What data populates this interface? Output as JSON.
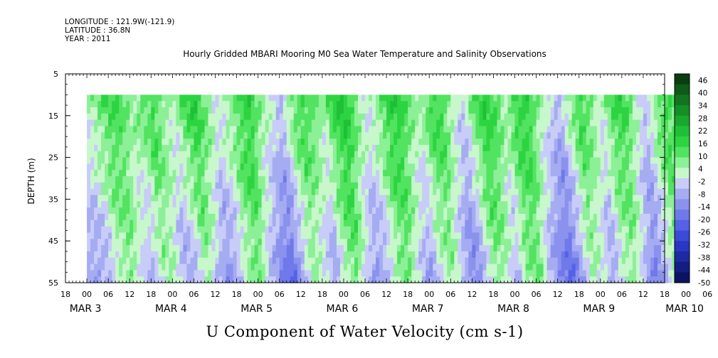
{
  "header": {
    "longitude": "LONGITUDE : 121.9W(-121.9)",
    "latitude": "LATITUDE : 36.8N",
    "year": "YEAR : 2011"
  },
  "chart_data": {
    "type": "heatmap",
    "title": "Hourly Gridded MBARI Mooring M0 Sea Water Temperature and Salinity Observations",
    "xlabel": "U Component of Water Velocity (cm s-1)",
    "ylabel": "DEPTH (m)",
    "ylim": [
      5,
      55
    ],
    "y_inverted": true,
    "yticks": [
      5,
      15,
      25,
      35,
      45,
      55
    ],
    "x_range_hours": [
      0,
      168
    ],
    "x_start_label": "MAR 2 18h",
    "xticks_hours": [
      "18",
      "00",
      "06",
      "12",
      "18",
      "00",
      "06",
      "12",
      "18",
      "00",
      "06",
      "12",
      "18",
      "00",
      "06",
      "12",
      "18",
      "00",
      "06",
      "12",
      "18",
      "00",
      "06",
      "12",
      "18",
      "00",
      "06",
      "12",
      "18",
      "00",
      "06",
      "12",
      "18",
      "00",
      "06",
      "12",
      "18"
    ],
    "day_labels": [
      {
        "text": "MAR  3",
        "hour": 6
      },
      {
        "text": "MAR  4",
        "hour": 30
      },
      {
        "text": "MAR  5",
        "hour": 54
      },
      {
        "text": "MAR  6",
        "hour": 78
      },
      {
        "text": "MAR  7",
        "hour": 102
      },
      {
        "text": "MAR  8",
        "hour": 126
      },
      {
        "text": "MAR  9",
        "hour": 150
      },
      {
        "text": "MAR 10",
        "hour": 174
      }
    ],
    "data_depth_range": [
      10,
      55
    ],
    "data_hour_range": [
      6,
      174
    ],
    "colorbar": {
      "levels": [
        46,
        40,
        34,
        28,
        22,
        16,
        10,
        4,
        -2,
        -8,
        -14,
        -20,
        -26,
        -32,
        -38,
        -44,
        -50
      ],
      "colors_top_to_bottom": [
        "#0b3d12",
        "#0e5a18",
        "#11751f",
        "#138f26",
        "#18a82e",
        "#1fc037",
        "#2dd442",
        "#52e360",
        "#8cf096",
        "#c8f7cc",
        "#c8ccf8",
        "#a5acf2",
        "#8a92ee",
        "#7079ea",
        "#5561e6",
        "#3c4ad8",
        "#2a37c4",
        "#1e2aa3",
        "#141d82",
        "#0c1363"
      ]
    },
    "field": {
      "x_hours": [
        6,
        9,
        12,
        15,
        18,
        21,
        24,
        27,
        30,
        33,
        36,
        39,
        42,
        45,
        48,
        51,
        54,
        57,
        60,
        63,
        66,
        69,
        72,
        75,
        78,
        81,
        84,
        87,
        90,
        93,
        96,
        99,
        102,
        105,
        108,
        111,
        114,
        117,
        120,
        123,
        126,
        129,
        132,
        135,
        138,
        141,
        144,
        147,
        150,
        153,
        156,
        159,
        162,
        165,
        168,
        171,
        174
      ],
      "surface_u": [
        4,
        10,
        14,
        12,
        6,
        10,
        16,
        8,
        4,
        14,
        18,
        10,
        2,
        6,
        14,
        18,
        8,
        2,
        -4,
        10,
        16,
        12,
        6,
        16,
        20,
        10,
        2,
        8,
        16,
        18,
        10,
        4,
        14,
        16,
        6,
        -2,
        10,
        18,
        14,
        6,
        16,
        18,
        8,
        0,
        -6,
        6,
        16,
        10,
        2,
        14,
        16,
        6,
        -4,
        8,
        16,
        10,
        -4
      ],
      "deep_u": [
        -10,
        -6,
        4,
        8,
        -2,
        -8,
        4,
        2,
        -10,
        -6,
        6,
        -4,
        -14,
        -6,
        4,
        8,
        -6,
        -14,
        -20,
        -8,
        4,
        -2,
        -10,
        4,
        10,
        -4,
        -12,
        -6,
        6,
        8,
        -4,
        -10,
        2,
        4,
        -8,
        -16,
        -6,
        8,
        4,
        -8,
        6,
        8,
        -6,
        -14,
        -20,
        -10,
        4,
        -2,
        -10,
        2,
        6,
        -6,
        -16,
        -6,
        6,
        2,
        -12
      ]
    }
  }
}
